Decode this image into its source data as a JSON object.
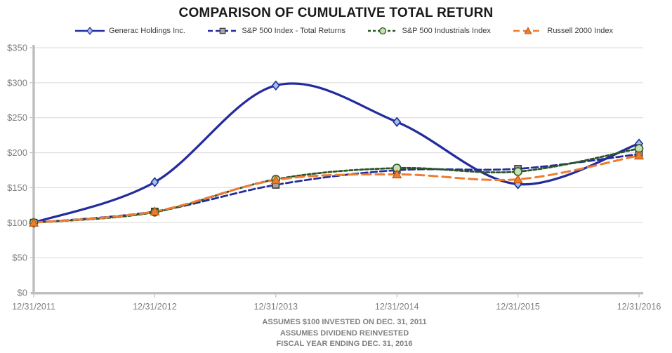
{
  "title": "COMPARISON OF CUMULATIVE TOTAL RETURN",
  "footnotes": [
    "ASSUMES $100 INVESTED ON DEC. 31, 2011",
    "ASSUMES DIVIDEND REINVESTED",
    "FISCAL YEAR ENDING DEC. 31, 2016"
  ],
  "colors": {
    "background": "#ffffff",
    "grid": "#d9d9d9",
    "axis": "#bfbfbf",
    "tick_label": "#7f7f7f",
    "title": "#1a1a1a",
    "footnote": "#7f7f7f",
    "legend_text": "#3a3a3a",
    "navy": "#232b9e",
    "dark_green": "#2b5523",
    "orange": "#ed7d31"
  },
  "chart_data": {
    "type": "line",
    "title": "COMPARISON OF CUMULATIVE TOTAL RETURN",
    "xlabel": "",
    "ylabel": "",
    "grid": true,
    "legend_position": "top",
    "ylim": [
      0,
      350
    ],
    "x": [
      "12/31/2011",
      "12/31/2012",
      "12/31/2013",
      "12/31/2014",
      "12/31/2015",
      "12/31/2016"
    ],
    "y_ticks": [
      {
        "value": 0,
        "label": "$0"
      },
      {
        "value": 50,
        "label": "$50"
      },
      {
        "value": 100,
        "label": "$100"
      },
      {
        "value": 150,
        "label": "$150"
      },
      {
        "value": 200,
        "label": "$200"
      },
      {
        "value": 250,
        "label": "$250"
      },
      {
        "value": 300,
        "label": "$300"
      },
      {
        "value": 350,
        "label": "$350"
      }
    ],
    "series": [
      {
        "name": "Generac Holdings Inc.",
        "values": [
          100,
          158,
          296,
          244,
          155,
          213
        ],
        "color": "#232b9e",
        "dash": "solid",
        "width": 3.25,
        "marker": "diamond",
        "marker_fill": "#9dc3e6",
        "marker_stroke": "#232b9e"
      },
      {
        "name": "S&P 500 Index - Total Returns",
        "values": [
          100,
          116,
          154,
          175,
          177,
          198
        ],
        "color": "#232b9e",
        "dash": "long",
        "width": 2.75,
        "marker": "square",
        "marker_fill": "#a6a6a6",
        "marker_stroke": "#3a3a3a"
      },
      {
        "name": "S&P 500 Industrials Index",
        "values": [
          100,
          115,
          162,
          178,
          173,
          206
        ],
        "color": "#2b5523",
        "dash": "short",
        "width": 2.75,
        "marker": "circle",
        "marker_fill": "#c6e0b4",
        "marker_stroke": "#2b5523"
      },
      {
        "name": "Russell 2000 Index",
        "values": [
          100,
          116,
          161,
          169,
          162,
          196
        ],
        "color": "#ed7d31",
        "dash": "xlong",
        "width": 3,
        "marker": "triangle",
        "marker_fill": "#ed7d31",
        "marker_stroke": "#c55a11"
      }
    ]
  }
}
